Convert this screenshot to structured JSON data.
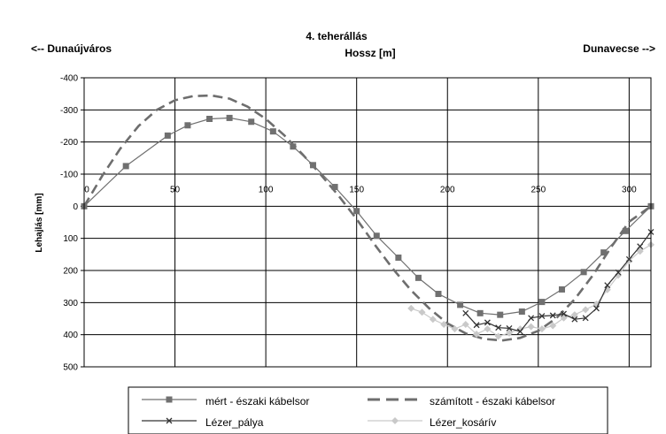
{
  "header": {
    "left": "<-- Dunaújváros",
    "right": "Dunavecse -->"
  },
  "chart_data": {
    "type": "line",
    "title": "4. teherállás",
    "xlabel": "Hossz [m]",
    "ylabel": "Lehajlás [mm]",
    "xlim": [
      0,
      312
    ],
    "ylim": [
      -400,
      500
    ],
    "y_inverted": true,
    "grid": true,
    "legend_position": "bottom",
    "x_ticks": [
      0,
      50,
      100,
      150,
      200,
      250,
      300
    ],
    "x_tick_labels": [
      "0",
      "50",
      "100",
      "150",
      "200",
      "250",
      "300"
    ],
    "y_ticks": [
      -400,
      -300,
      -200,
      -100,
      0,
      100,
      200,
      300,
      400,
      500
    ],
    "y_tick_labels": [
      "-400",
      "-300",
      "-200",
      "-100",
      "0",
      "100",
      "200",
      "300",
      "400",
      "500"
    ],
    "series": [
      {
        "name": "mért - északi kábelsor",
        "color": "#707070",
        "style": "solid-square-markers",
        "points": [
          [
            0,
            0
          ],
          [
            23,
            -125
          ],
          [
            46,
            -220
          ],
          [
            57,
            -252
          ],
          [
            69,
            -272
          ],
          [
            80,
            -275
          ],
          [
            92,
            -263
          ],
          [
            104,
            -233
          ],
          [
            115,
            -186
          ],
          [
            126,
            -128
          ],
          [
            138,
            -60
          ],
          [
            150,
            15
          ],
          [
            161,
            92
          ],
          [
            173,
            160
          ],
          [
            184,
            223
          ],
          [
            195,
            273
          ],
          [
            207,
            307
          ],
          [
            218,
            333
          ],
          [
            229,
            338
          ],
          [
            241,
            328
          ],
          [
            252,
            298
          ],
          [
            263,
            259
          ],
          [
            275,
            205
          ],
          [
            286,
            144
          ],
          [
            298,
            77
          ],
          [
            312,
            0
          ]
        ]
      },
      {
        "name": "számított - északi kábelsor",
        "color": "#6e6e6e",
        "style": "dashed",
        "points": [
          [
            0,
            0
          ],
          [
            10,
            -95
          ],
          [
            20,
            -180
          ],
          [
            30,
            -250
          ],
          [
            40,
            -300
          ],
          [
            50,
            -330
          ],
          [
            60,
            -343
          ],
          [
            70,
            -345
          ],
          [
            80,
            -335
          ],
          [
            90,
            -310
          ],
          [
            100,
            -272
          ],
          [
            110,
            -222
          ],
          [
            120,
            -163
          ],
          [
            130,
            -100
          ],
          [
            140,
            -33
          ],
          [
            150,
            40
          ],
          [
            160,
            120
          ],
          [
            170,
            195
          ],
          [
            180,
            262
          ],
          [
            190,
            318
          ],
          [
            200,
            365
          ],
          [
            210,
            396
          ],
          [
            220,
            413
          ],
          [
            230,
            418
          ],
          [
            240,
            410
          ],
          [
            250,
            388
          ],
          [
            260,
            348
          ],
          [
            270,
            290
          ],
          [
            280,
            215
          ],
          [
            290,
            128
          ],
          [
            300,
            48
          ],
          [
            312,
            0
          ]
        ]
      },
      {
        "name": "Lézer_pálya",
        "color": "#333333",
        "style": "solid-x-markers",
        "points": [
          [
            210,
            333
          ],
          [
            216,
            370
          ],
          [
            222,
            362
          ],
          [
            228,
            378
          ],
          [
            234,
            380
          ],
          [
            240,
            390
          ],
          [
            246,
            348
          ],
          [
            252,
            342
          ],
          [
            258,
            340
          ],
          [
            264,
            335
          ],
          [
            270,
            352
          ],
          [
            276,
            348
          ],
          [
            282,
            318
          ],
          [
            288,
            246
          ],
          [
            294,
            206
          ],
          [
            300,
            165
          ],
          [
            306,
            125
          ],
          [
            312,
            80
          ]
        ]
      },
      {
        "name": "Lézer_kosárív",
        "color": "#c9c9c9",
        "style": "solid-diamond-markers",
        "points": [
          [
            180,
            318
          ],
          [
            186,
            330
          ],
          [
            192,
            352
          ],
          [
            198,
            368
          ],
          [
            204,
            382
          ],
          [
            210,
            368
          ],
          [
            216,
            398
          ],
          [
            222,
            382
          ],
          [
            228,
            405
          ],
          [
            234,
            395
          ],
          [
            240,
            382
          ],
          [
            246,
            375
          ],
          [
            252,
            382
          ],
          [
            258,
            372
          ],
          [
            264,
            348
          ],
          [
            270,
            338
          ],
          [
            276,
            322
          ],
          [
            282,
            305
          ],
          [
            288,
            260
          ],
          [
            294,
            215
          ],
          [
            300,
            170
          ],
          [
            306,
            140
          ],
          [
            312,
            120
          ]
        ]
      }
    ]
  }
}
